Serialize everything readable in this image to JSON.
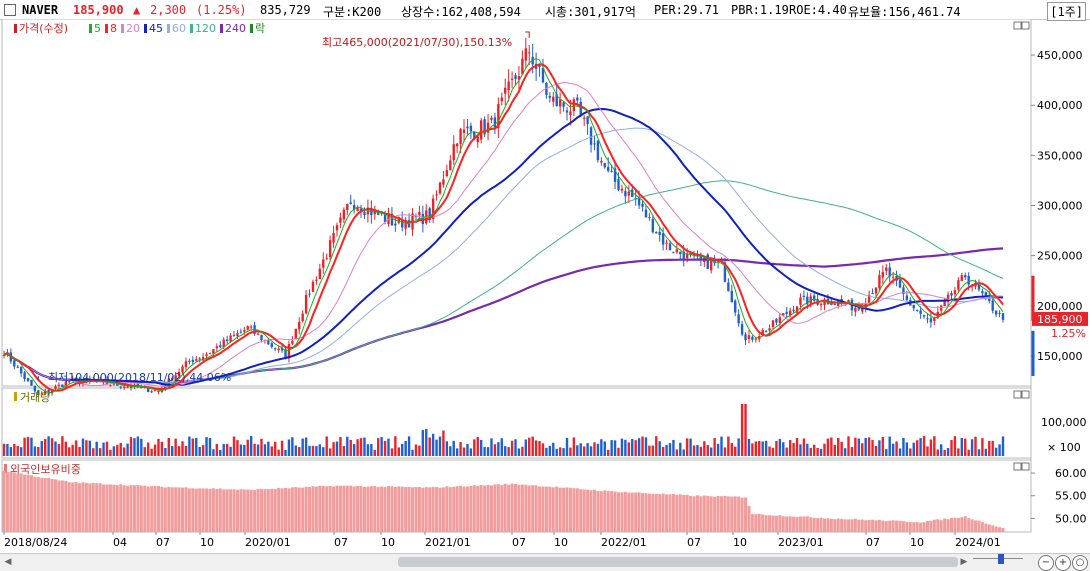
{
  "header": {
    "stock_name": "NAVER",
    "price": "185,900",
    "change_arrow": "▲",
    "change": "2,300",
    "change_pct": "(1.25%)",
    "volume": "835,729",
    "segment": "구분:K200",
    "shares": "상장수:162,408,594",
    "market_cap": "시총:301,917억",
    "per": "PER:29.71",
    "pbr": "PBR:1.19",
    "roe": "ROE:4.40",
    "float_ratio": "유보율:156,461.74",
    "period_button": "[1주]"
  },
  "price_panel": {
    "legend": [
      {
        "text": "가격(수정)",
        "color": "#d11f1f"
      },
      {
        "text": "5",
        "color": "#22aa22"
      },
      {
        "text": "8",
        "color": "#ff2020"
      },
      {
        "text": "20",
        "color": "#e080c8"
      },
      {
        "text": "45",
        "color": "#1020c0"
      },
      {
        "text": "60",
        "color": "#90b0e0"
      },
      {
        "text": "120",
        "color": "#40b090"
      },
      {
        "text": "240",
        "color": "#7a28b0"
      },
      {
        "text": "락",
        "color": "#228822"
      }
    ],
    "high_annotation": "최고465,000(2021/07/30),150.13%",
    "low_annotation": "최저104,000(2018/11/02),44.06%",
    "current_price_label": "185,900",
    "current_pct_label": "1.25%",
    "up_color": "#e8232a",
    "down_color": "#1f5fd0"
  },
  "volume_panel": {
    "label": "거래량",
    "tick_labels": [
      "100,000",
      "× 100"
    ]
  },
  "foreign_panel": {
    "label": "외국인보유비중",
    "tick_labels": [
      "60.00",
      "55.00",
      "50.00"
    ]
  },
  "chart_data": [
    {
      "type": "candlestick",
      "title": "NAVER",
      "x_tick_labels": [
        "2018/08/24",
        "04",
        "07",
        "10",
        "2020/01",
        "07",
        "10",
        "2021/01",
        "07",
        "10",
        "2022/01",
        "07",
        "10",
        "2023/01",
        "07",
        "10",
        "2024/01"
      ],
      "y_tick_labels": [
        "450,000",
        "400,000",
        "350,000",
        "300,000",
        "250,000",
        "200,000",
        "150,000"
      ],
      "ylim": [
        120000,
        480000
      ],
      "date_range": [
        "2018-08-24",
        "2024-03-22"
      ],
      "close_series_approx": {
        "dates": [
          "2018-08-24",
          "2018-11-02",
          "2019-01-04",
          "2019-04-05",
          "2019-07-05",
          "2019-09-06",
          "2019-10-04",
          "2020-01-03",
          "2020-03-20",
          "2020-05-08",
          "2020-06-05",
          "2020-07-31",
          "2020-10-30",
          "2021-01-08",
          "2021-03-05",
          "2021-05-14",
          "2021-07-30",
          "2021-09-10",
          "2021-11-05",
          "2022-01-07",
          "2022-03-04",
          "2022-05-06",
          "2022-07-01",
          "2022-08-26",
          "2022-10-14",
          "2022-12-02",
          "2023-02-03",
          "2023-04-07",
          "2023-06-02",
          "2023-07-28",
          "2023-09-08",
          "2023-10-27",
          "2024-01-05",
          "2024-03-22"
        ],
        "values": [
          155000,
          110000,
          125000,
          122000,
          115000,
          145000,
          150000,
          178000,
          150000,
          215000,
          245000,
          305000,
          282000,
          290000,
          370000,
          380000,
          455000,
          405000,
          395000,
          330000,
          305000,
          260000,
          245000,
          240000,
          165000,
          178000,
          205000,
          205000,
          198000,
          235000,
          205000,
          182000,
          230000,
          185900
        ]
      },
      "moving_averages": [
        "5",
        "8",
        "20",
        "45",
        "60",
        "120",
        "240"
      ],
      "annotations": [
        {
          "text": "최고465,000(2021/07/30),150.13%",
          "date": "2021-07-30",
          "value": 465000
        },
        {
          "text": "최저104,000(2018/11/02),44.06%",
          "date": "2018-11-02",
          "value": 104000
        }
      ]
    },
    {
      "type": "bar",
      "title": "거래량",
      "y_tick_labels": [
        "100,000",
        "× 100"
      ],
      "note": "weekly volume bars, spike near 2022/10"
    },
    {
      "type": "area",
      "title": "외국인보유비중",
      "y_tick_labels": [
        "60.00",
        "55.00",
        "50.00"
      ],
      "ylim": [
        47,
        62
      ],
      "dates": [
        "2018-08-24",
        "2019-01-04",
        "2019-07-05",
        "2020-01-03",
        "2020-07-03",
        "2021-01-08",
        "2021-07-02",
        "2022-01-07",
        "2022-07-01",
        "2022-10-14",
        "2022-10-28",
        "2023-04-07",
        "2023-10-06",
        "2024-01-05",
        "2024-03-22"
      ],
      "values": [
        60.5,
        58.0,
        57.0,
        56.3,
        57.2,
        56.8,
        57.6,
        56.0,
        55.0,
        54.7,
        51.0,
        50.0,
        49.2,
        50.4,
        47.8
      ]
    }
  ]
}
